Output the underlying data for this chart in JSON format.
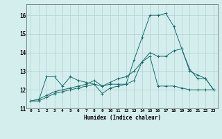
{
  "xlabel": "Humidex (Indice chaleur)",
  "bg_color": "#d4eeee",
  "grid_color": "#b8d4d4",
  "line_color": "#1a6b6b",
  "xlim": [
    -0.5,
    23.5
  ],
  "ylim": [
    11,
    16.6
  ],
  "yticks": [
    11,
    12,
    13,
    14,
    15,
    16
  ],
  "xticks": [
    0,
    1,
    2,
    3,
    4,
    5,
    6,
    7,
    8,
    9,
    10,
    11,
    12,
    13,
    14,
    15,
    16,
    17,
    18,
    19,
    20,
    21,
    22,
    23
  ],
  "series": [
    [
      11.4,
      11.4,
      12.7,
      12.7,
      12.2,
      12.7,
      12.5,
      12.4,
      12.3,
      12.2,
      12.3,
      12.3,
      12.3,
      13.6,
      14.8,
      16.0,
      16.0,
      16.1,
      15.4,
      14.2,
      13.0,
      12.8,
      12.6,
      12.0
    ],
    [
      11.4,
      11.4,
      11.6,
      11.8,
      11.9,
      12.0,
      12.1,
      12.2,
      12.3,
      11.8,
      12.1,
      12.2,
      12.3,
      12.5,
      13.5,
      13.8,
      12.2,
      12.2,
      12.2,
      12.1,
      12.0,
      12.0,
      12.0,
      12.0
    ],
    [
      11.4,
      11.5,
      11.7,
      11.9,
      12.0,
      12.1,
      12.2,
      12.3,
      12.5,
      12.2,
      12.4,
      12.6,
      12.7,
      13.0,
      13.5,
      14.0,
      13.8,
      13.8,
      14.1,
      14.2,
      13.1,
      12.6,
      12.6,
      12.0
    ]
  ]
}
